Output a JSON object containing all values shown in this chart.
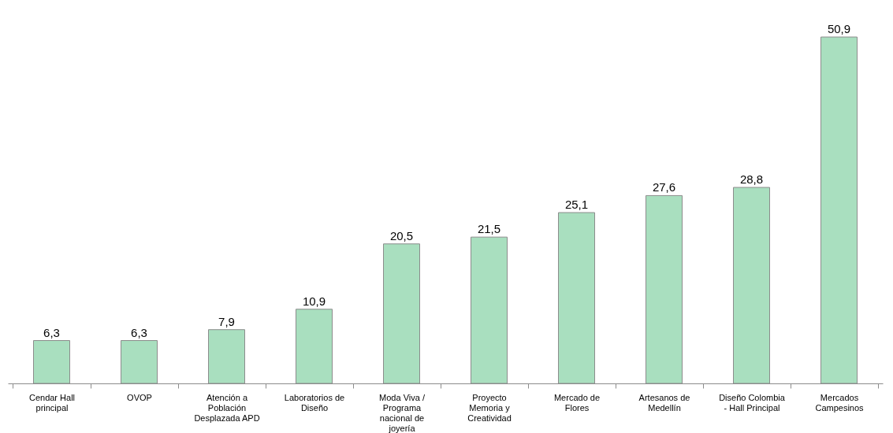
{
  "chart_data": {
    "type": "bar",
    "categories": [
      "Cendar Hall\nprincipal",
      "OVOP",
      "Atención a\nPoblación\nDesplazada APD",
      "Laboratorios de\nDiseño",
      "Moda Viva /\nPrograma\nnacional de\njoyería",
      "Proyecto\nMemoria y\nCreatividad",
      "Mercado de\nFlores",
      "Artesanos de\nMedellín",
      "Diseño Colombia\n- Hall Principal",
      "Mercados\nCampesinos"
    ],
    "values": [
      6.3,
      6.3,
      7.9,
      10.9,
      20.5,
      21.5,
      25.1,
      27.6,
      28.8,
      50.9
    ],
    "color": "#a9dfbf",
    "value_labels": [
      "6,3",
      "6,3",
      "7,9",
      "10,9",
      "20,5",
      "21,5",
      "25,1",
      "27,6",
      "28,8",
      "50,9"
    ],
    "tick_labels": "x"
  }
}
